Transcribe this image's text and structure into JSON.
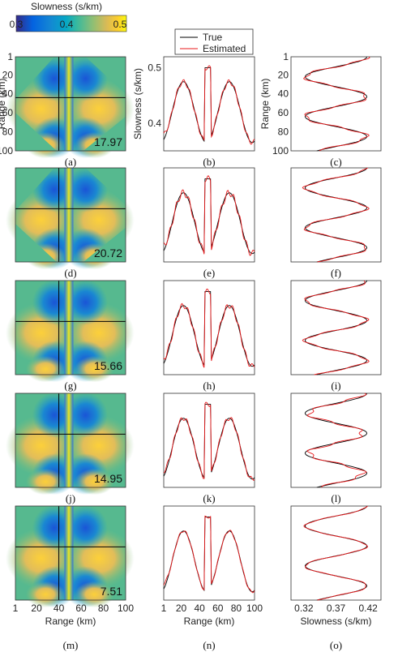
{
  "colorbar": {
    "title": "Slowness (s/km)",
    "ticks": [
      "0.3",
      "0.4",
      "0.5"
    ],
    "colormap": [
      "#352a87",
      "#0363e1",
      "#1485d4",
      "#06a7c6",
      "#38b99e",
      "#92bf73",
      "#d9ba56",
      "#fcce2e",
      "#f9fb0e"
    ]
  },
  "legend": {
    "entries": [
      "True",
      "Estimated"
    ],
    "colors": [
      "#000000",
      "#e8191b"
    ]
  },
  "axis_labels": {
    "map_y": "Range (km)",
    "map_x": "Range (km)",
    "profile_y": "Slowness (s/km)",
    "profile_x": "Range (km)",
    "vertical_y": "Range (km)",
    "vertical_x": "Slowness (s/km)"
  },
  "ticks": {
    "range": [
      "1",
      "20",
      "40",
      "60",
      "80",
      "100"
    ],
    "profile_slowness": [
      "0.4",
      "0.5"
    ],
    "vertical_slowness": [
      "0.32",
      "0.37",
      "0.42"
    ]
  },
  "chart_data": [
    {
      "type": "heatmap",
      "label": "(a)",
      "value": "17.97",
      "xlim": [
        1,
        100
      ],
      "ylim": [
        1,
        100
      ],
      "crosshair": [
        40,
        44
      ]
    },
    {
      "type": "line",
      "label": "(b)",
      "xlim": [
        1,
        100
      ],
      "ylim": [
        0.35,
        0.52
      ],
      "series": [
        {
          "name": "True"
        },
        {
          "name": "Estimated"
        }
      ]
    },
    {
      "type": "line",
      "label": "(c)",
      "xlim": [
        0.3,
        0.44
      ],
      "ylim": [
        1,
        100
      ]
    },
    {
      "type": "heatmap",
      "label": "(d)",
      "value": "20.72"
    },
    {
      "type": "line",
      "label": "(e)"
    },
    {
      "type": "line",
      "label": "(f)"
    },
    {
      "type": "heatmap",
      "label": "(g)",
      "value": "15.66"
    },
    {
      "type": "line",
      "label": "(h)"
    },
    {
      "type": "line",
      "label": "(i)"
    },
    {
      "type": "heatmap",
      "label": "(j)",
      "value": "14.95"
    },
    {
      "type": "line",
      "label": "(k)"
    },
    {
      "type": "line",
      "label": "(l)"
    },
    {
      "type": "heatmap",
      "label": "(m)",
      "value": "7.51"
    },
    {
      "type": "line",
      "label": "(n)"
    },
    {
      "type": "line",
      "label": "(o)"
    }
  ]
}
